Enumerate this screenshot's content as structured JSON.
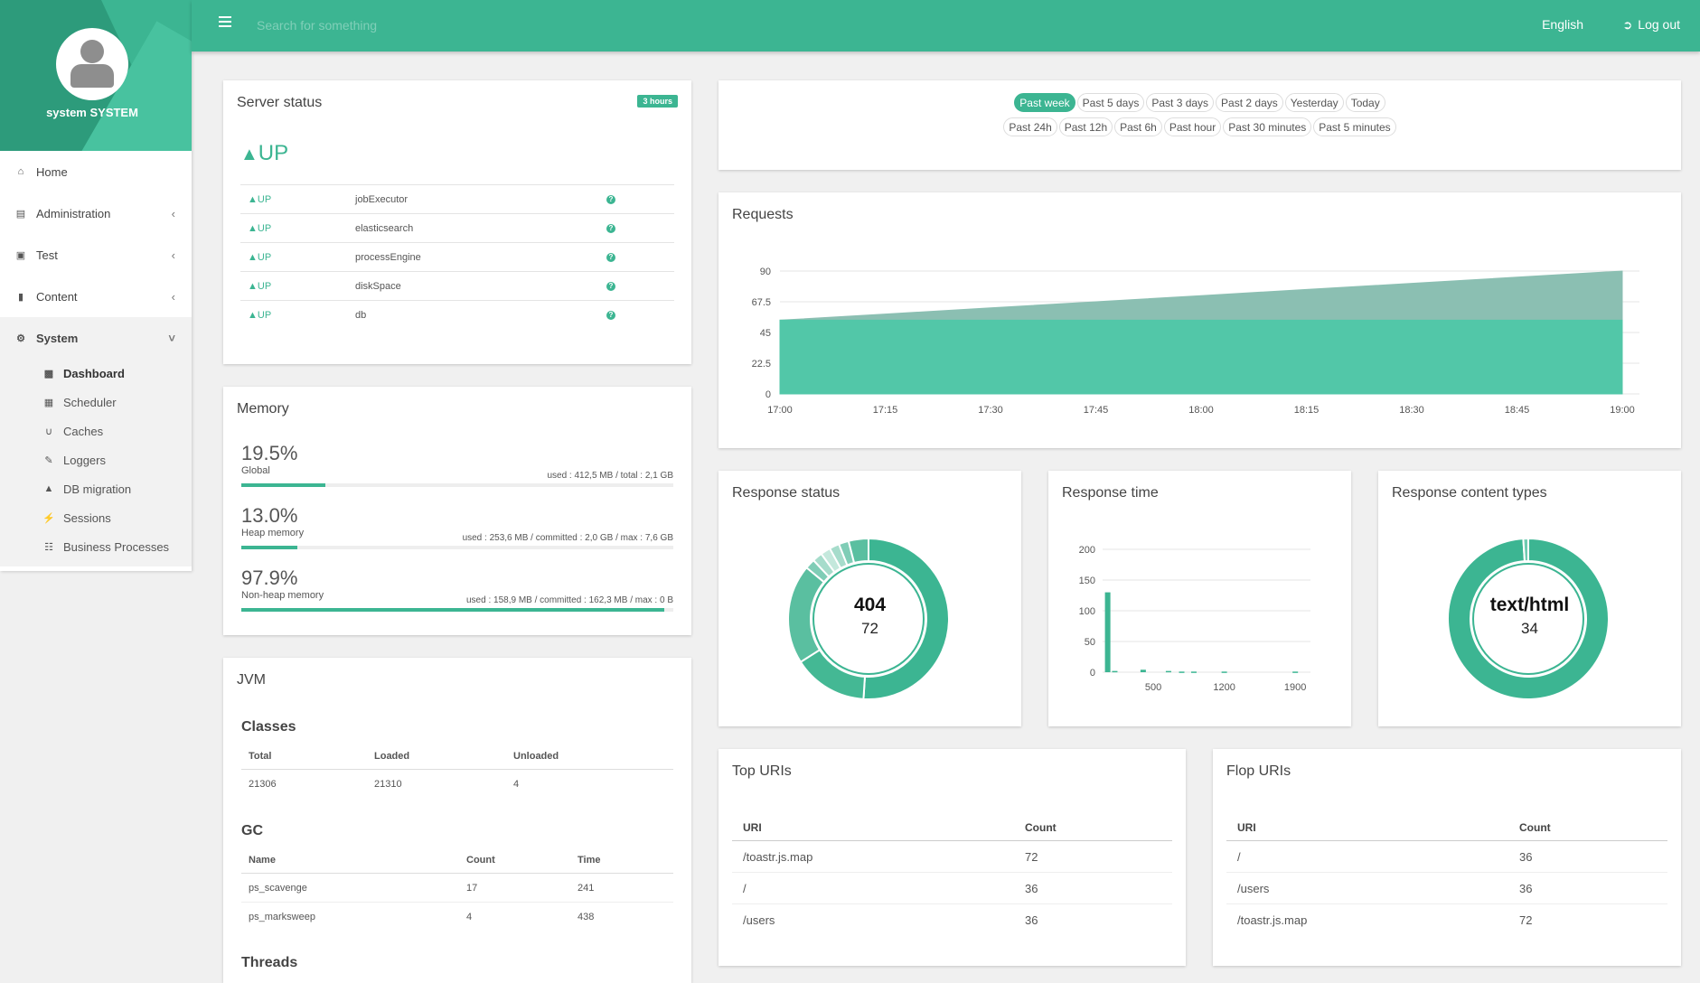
{
  "user": {
    "name": "system SYSTEM"
  },
  "topbar": {
    "search_placeholder": "Search for something",
    "language": "English",
    "logout_label": "Log out"
  },
  "nav": {
    "items": [
      {
        "label": "Home",
        "icon": "home-icon"
      },
      {
        "label": "Administration",
        "icon": "list-icon"
      },
      {
        "label": "Test",
        "icon": "image-icon"
      },
      {
        "label": "Content",
        "icon": "book-icon"
      },
      {
        "label": "System",
        "icon": "gears-icon"
      }
    ],
    "sub_items": [
      {
        "label": "Dashboard",
        "icon": "bar-chart-icon"
      },
      {
        "label": "Scheduler",
        "icon": "calendar-icon"
      },
      {
        "label": "Caches",
        "icon": "magnet-icon"
      },
      {
        "label": "Loggers",
        "icon": "pencil-icon"
      },
      {
        "label": "DB migration",
        "icon": "flask-icon"
      },
      {
        "label": "Sessions",
        "icon": "plug-icon"
      },
      {
        "label": "Business Processes",
        "icon": "sitemap-icon"
      }
    ]
  },
  "server_status": {
    "title": "Server status",
    "badge": "3 hours",
    "overall": "UP",
    "components": [
      {
        "status": "UP",
        "name": "jobExecutor"
      },
      {
        "status": "UP",
        "name": "elasticsearch"
      },
      {
        "status": "UP",
        "name": "processEngine"
      },
      {
        "status": "UP",
        "name": "diskSpace"
      },
      {
        "status": "UP",
        "name": "db"
      }
    ]
  },
  "memory": {
    "title": "Memory",
    "blocks": [
      {
        "pct": "19.5%",
        "label": "Global",
        "used": "used : 412,5 MB / total : 2,1 GB",
        "fill": 0.195
      },
      {
        "pct": "13.0%",
        "label": "Heap memory",
        "used": "used : 253,6 MB / committed : 2,0 GB / max : 7,6 GB",
        "fill": 0.13
      },
      {
        "pct": "97.9%",
        "label": "Non-heap memory",
        "used": "used : 158,9 MB / committed : 162,3 MB / max : 0 B",
        "fill": 0.979
      }
    ]
  },
  "jvm": {
    "title": "JVM",
    "classes_title": "Classes",
    "classes_headers": [
      "Total",
      "Loaded",
      "Unloaded"
    ],
    "classes_row": [
      "21306",
      "21310",
      "4"
    ],
    "gc_title": "GC",
    "gc_headers": [
      "Name",
      "Count",
      "Time"
    ],
    "gc_rows": [
      [
        "ps_scavenge",
        "17",
        "241"
      ],
      [
        "ps_marksweep",
        "4",
        "438"
      ]
    ],
    "threads_title": "Threads"
  },
  "periods": {
    "row1": [
      "Past week",
      "Past 5 days",
      "Past 3 days",
      "Past 2 days",
      "Yesterday",
      "Today"
    ],
    "row2": [
      "Past 24h",
      "Past 12h",
      "Past 6h",
      "Past hour",
      "Past 30 minutes",
      "Past 5 minutes"
    ],
    "selected": "Past week"
  },
  "requests": {
    "title": "Requests"
  },
  "response_status": {
    "title": "Response status",
    "center_label": "404",
    "center_value": "72"
  },
  "response_time": {
    "title": "Response time"
  },
  "content_types": {
    "title": "Response content types",
    "center_label": "text/html",
    "center_value": "34"
  },
  "top_uris": {
    "title": "Top URIs",
    "headers": [
      "URI",
      "Count"
    ],
    "rows": [
      [
        "/toastr.js.map",
        "72"
      ],
      [
        "/",
        "36"
      ],
      [
        "/users",
        "36"
      ]
    ]
  },
  "flop_uris": {
    "title": "Flop URIs",
    "headers": [
      "URI",
      "Count"
    ],
    "rows": [
      [
        "/",
        "36"
      ],
      [
        "/users",
        "36"
      ],
      [
        "/toastr.js.map",
        "72"
      ]
    ]
  },
  "chart_data": [
    {
      "type": "area",
      "title": "Requests",
      "x": [
        "17:00",
        "17:15",
        "17:30",
        "17:45",
        "18:00",
        "18:15",
        "18:30",
        "18:45",
        "19:00"
      ],
      "yticks": [
        "0",
        "22.5",
        "45",
        "67.5",
        "90"
      ],
      "ylim": [
        0,
        90
      ],
      "series": [
        {
          "values": [
            54,
            54,
            54,
            54,
            54,
            54,
            54,
            54,
            54
          ],
          "color": "#52c7a8"
        },
        {
          "values": [
            54,
            58.5,
            63,
            67.5,
            72,
            76.5,
            81,
            85.5,
            90
          ],
          "color": "#8bbfb2"
        }
      ]
    },
    {
      "type": "pie",
      "title": "Response status",
      "center": "404",
      "slices": [
        0.51,
        0.15,
        0.2,
        0.02,
        0.02,
        0.02,
        0.02,
        0.02,
        0.04
      ],
      "colors": [
        "#3cb592",
        "#44b894",
        "#5abfa0",
        "#7fcdb6",
        "#a6dccb",
        "#c4e8dc",
        "#a6dccb",
        "#7fcdb6",
        "#5abfa0"
      ]
    },
    {
      "type": "bar",
      "title": "Response time",
      "xticks": [
        "500",
        "1200",
        "1900"
      ],
      "yticks": [
        "0",
        "50",
        "100",
        "150",
        "200"
      ],
      "ylim": [
        0,
        200
      ],
      "bars": [
        {
          "x": 50,
          "y": 130
        },
        {
          "x": 120,
          "y": 2
        },
        {
          "x": 400,
          "y": 4
        },
        {
          "x": 650,
          "y": 2
        },
        {
          "x": 780,
          "y": 1
        },
        {
          "x": 900,
          "y": 1
        },
        {
          "x": 1200,
          "y": 1
        },
        {
          "x": 1900,
          "y": 1
        }
      ],
      "xlim": [
        0,
        2050
      ]
    },
    {
      "type": "pie",
      "title": "Response content types",
      "center": "text/html",
      "slices": [
        0.99,
        0.01
      ],
      "colors": [
        "#3cb592",
        "#6fcbb0"
      ]
    }
  ]
}
